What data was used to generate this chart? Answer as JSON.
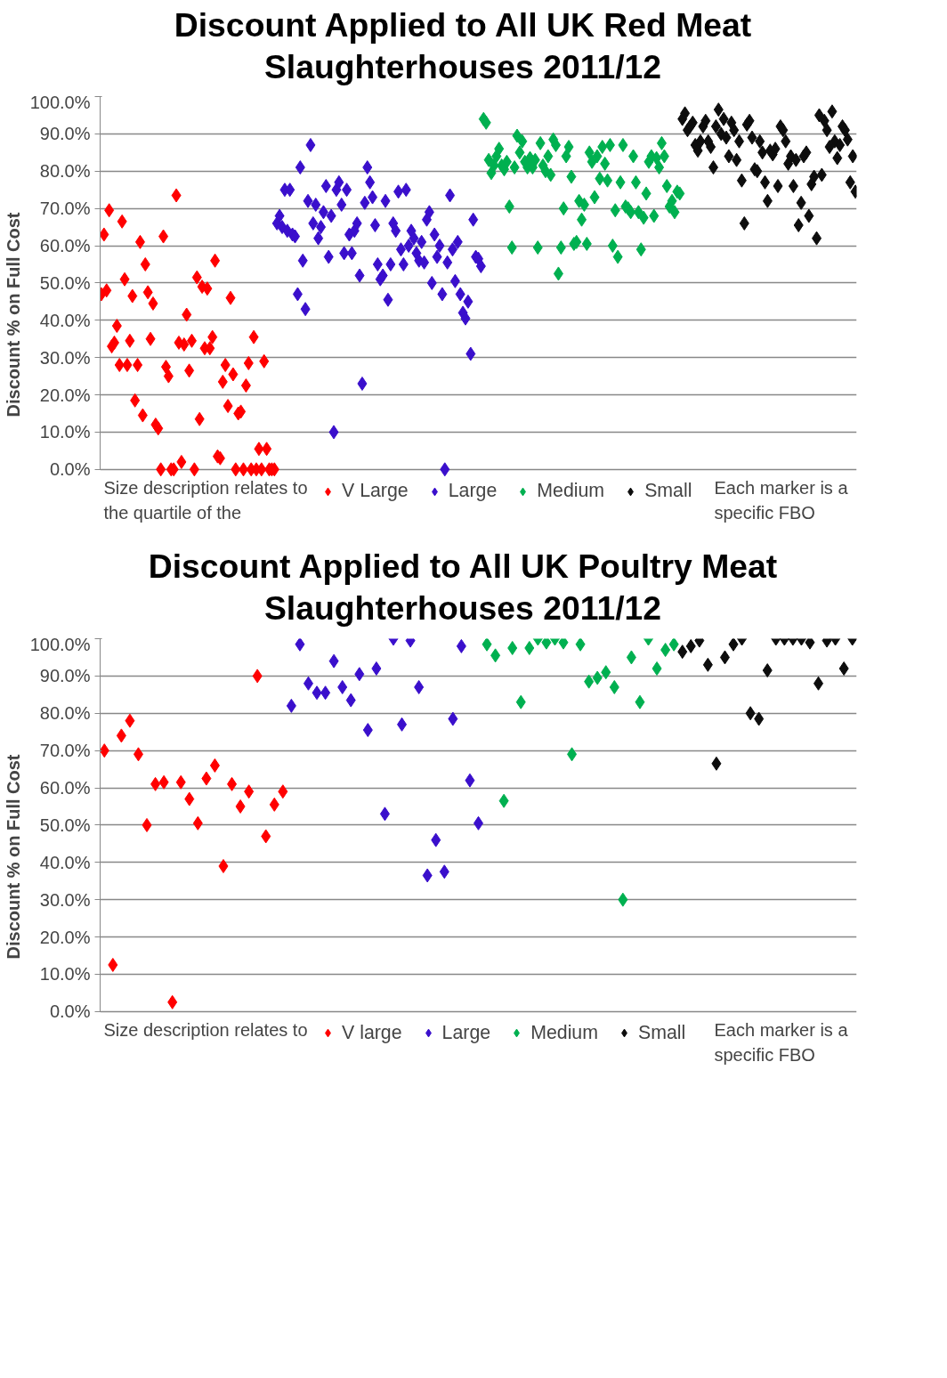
{
  "chart_data": [
    {
      "type": "scatter",
      "title": "Discount Applied to All UK Red Meat Slaughterhouses 2011/12",
      "ylabel": "Discount % on Full Cost",
      "marker": "diamond",
      "grid": "y",
      "legend": "bottom",
      "ylim": [
        0,
        100
      ],
      "categories": [
        null,
        null,
        null,
        null,
        null,
        null,
        null,
        null,
        null,
        null,
        null,
        null,
        null,
        null,
        null,
        null,
        null,
        null,
        null,
        null,
        null,
        null,
        null,
        null,
        null,
        null,
        null,
        null,
        null,
        null,
        null,
        null,
        null,
        null,
        null,
        null,
        null,
        null,
        null,
        null,
        null,
        null,
        null,
        null,
        null,
        null,
        null,
        null,
        null,
        null,
        null,
        null,
        null,
        null,
        null,
        null,
        null,
        null,
        null,
        null,
        null,
        null,
        null,
        null,
        null,
        null,
        null,
        null,
        null,
        null,
        null,
        null,
        null,
        null,
        null,
        null,
        null,
        null,
        null,
        null,
        null,
        null,
        null,
        null,
        null,
        null,
        null,
        null,
        null,
        null,
        null,
        null,
        null,
        null,
        null,
        null,
        null,
        null,
        null,
        null,
        null,
        null,
        null,
        null,
        null,
        null,
        null,
        null,
        null,
        null,
        null,
        null,
        null,
        null,
        null,
        null,
        null,
        null,
        null,
        null,
        null,
        null,
        null,
        null,
        null,
        null,
        null,
        null,
        null,
        null,
        null,
        null,
        null,
        null,
        null,
        null,
        null,
        null,
        null,
        null,
        null,
        null,
        null,
        null,
        null,
        null,
        null,
        null,
        null,
        null,
        null,
        null,
        null,
        null,
        null,
        null,
        null,
        null,
        null,
        null,
        null,
        null,
        null,
        null,
        null,
        null,
        null,
        null,
        null,
        null,
        null,
        null,
        null,
        null,
        null,
        null,
        null,
        null,
        null,
        null,
        null,
        null,
        null,
        null,
        null,
        null,
        null,
        null,
        null,
        null,
        null,
        null,
        null,
        null,
        null,
        null,
        null,
        null,
        null,
        null,
        null,
        null,
        null,
        null,
        null,
        null,
        null,
        null,
        null,
        null,
        null,
        null,
        null,
        null,
        null,
        null,
        null,
        null,
        null,
        null,
        null,
        null,
        null,
        null,
        null,
        null,
        null,
        null,
        null,
        null,
        null,
        null,
        null,
        null,
        null,
        null,
        null,
        null,
        null,
        null,
        null,
        null,
        null,
        null,
        null,
        null,
        null,
        null,
        null,
        null,
        null,
        null,
        null,
        null,
        null,
        null,
        null,
        null,
        null,
        null,
        null,
        null,
        null,
        null,
        null,
        null,
        null,
        null,
        null,
        null,
        null,
        null,
        null,
        null,
        null,
        null,
        null,
        null,
        null,
        null,
        null,
        null,
        null,
        null,
        null,
        null,
        null,
        null,
        null,
        null,
        null,
        null,
        null
      ],
      "yticks": [
        {
          "value": 0,
          "label": "0.0%"
        },
        {
          "value": 10,
          "label": "10.0%"
        },
        {
          "value": 20,
          "label": "20.0%"
        },
        {
          "value": 30,
          "label": "30.0%"
        },
        {
          "value": 40,
          "label": "40.0%"
        },
        {
          "value": 50,
          "label": "50.0%"
        },
        {
          "value": 60,
          "label": "60.0%"
        },
        {
          "value": 70,
          "label": "70.0%"
        },
        {
          "value": 80,
          "label": "80.0%"
        },
        {
          "value": 90,
          "label": "90.0%"
        },
        {
          "value": 100,
          "label": "100.0%"
        }
      ],
      "annotations": [
        "Size description relates to the quartile of the",
        "Each marker is a specific FBO"
      ],
      "series": [
        {
          "name": "V Large",
          "color": "#ff0000",
          "values": [
            47,
            63,
            48,
            69.5,
            33,
            34,
            38.5,
            28,
            66.5,
            51,
            28,
            34.5,
            46.5,
            18.5,
            28,
            61,
            14.5,
            55,
            47.5,
            35,
            44.5,
            12,
            11,
            0,
            62.5,
            27.5,
            25,
            0,
            0,
            73.5,
            34,
            2,
            33.5,
            41.5,
            26.5,
            34.5,
            0,
            51.5,
            13.5,
            49,
            32.5,
            48.5,
            32.5,
            35.5,
            56,
            3.5,
            3,
            23.5,
            28,
            17,
            46,
            25.5,
            0,
            15,
            15.5,
            0,
            22.5,
            28.5,
            0,
            35.5,
            0,
            5.5,
            0,
            29,
            5.5,
            0,
            0,
            0,
            null,
            null,
            null,
            null,
            null,
            null,
            null,
            null,
            null,
            null,
            null,
            null,
            null,
            null,
            null,
            null,
            null,
            null,
            null,
            null,
            null,
            null,
            null,
            null,
            null,
            null,
            null,
            null,
            null,
            null,
            null,
            null,
            null,
            null,
            null,
            null,
            null,
            null,
            null,
            null,
            null,
            null,
            null,
            null,
            null,
            null,
            null,
            null,
            null,
            null,
            null,
            null,
            null,
            null,
            null,
            null,
            null,
            null,
            null,
            null,
            null,
            null,
            null,
            null,
            null,
            null,
            null,
            null,
            null,
            null,
            null,
            null,
            null,
            null,
            null,
            null,
            null,
            null,
            null,
            null,
            null,
            null,
            null,
            null,
            null,
            null,
            null,
            null,
            null,
            null,
            null,
            null,
            null,
            null,
            null,
            null,
            null,
            null,
            null,
            null,
            null,
            null,
            null,
            null,
            null,
            null,
            null,
            null,
            null,
            null,
            null,
            null,
            null,
            null,
            null,
            null,
            null,
            null,
            null,
            null,
            null,
            null,
            null,
            null,
            null,
            null,
            null,
            null,
            null,
            null,
            null,
            null,
            null,
            null,
            null,
            null,
            null,
            null,
            null,
            null,
            null,
            null,
            null,
            null,
            null,
            null,
            null,
            null,
            null,
            null,
            null,
            null,
            null,
            null,
            null,
            null,
            null,
            null,
            null,
            null,
            null,
            null,
            null,
            null,
            null,
            null,
            null,
            null,
            null,
            null,
            null,
            null,
            null,
            null,
            null,
            null,
            null,
            null,
            null,
            null,
            null,
            null,
            null,
            null,
            null,
            null,
            null,
            null,
            null,
            null,
            null,
            null,
            null,
            null,
            null,
            null,
            null,
            null,
            null,
            null,
            null,
            null,
            null,
            null,
            null,
            null,
            null,
            null,
            null,
            null,
            null,
            null,
            null,
            null,
            null,
            null,
            null,
            null,
            null,
            null,
            null,
            null,
            null,
            null,
            null
          ]
        },
        {
          "name": "Large",
          "color": "#3a0fcc",
          "values": [
            null,
            null,
            null,
            null,
            null,
            null,
            null,
            null,
            null,
            null,
            null,
            null,
            null,
            null,
            null,
            null,
            null,
            null,
            null,
            null,
            null,
            null,
            null,
            null,
            null,
            null,
            null,
            null,
            null,
            null,
            null,
            null,
            null,
            null,
            null,
            null,
            null,
            null,
            null,
            null,
            null,
            null,
            null,
            null,
            null,
            null,
            null,
            null,
            null,
            null,
            null,
            null,
            null,
            null,
            null,
            null,
            null,
            null,
            null,
            null,
            null,
            null,
            null,
            null,
            null,
            null,
            null,
            null,
            66,
            68,
            65,
            75,
            64,
            75,
            63,
            62.5,
            47,
            81,
            56,
            43,
            72,
            87,
            66,
            71,
            62,
            65,
            69,
            76,
            57,
            68,
            10,
            75,
            77,
            71,
            58,
            75,
            63,
            58,
            64,
            66,
            52,
            23,
            71.5,
            81,
            77,
            73,
            65.5,
            55,
            51,
            52,
            72,
            45.5,
            55,
            66,
            64,
            74.5,
            59,
            55,
            75,
            60,
            64,
            62,
            58,
            56,
            61,
            55.5,
            67,
            69,
            50,
            63,
            57,
            60,
            47,
            0,
            55.5,
            73.5,
            59,
            50.5,
            61,
            47,
            42,
            40.5,
            45,
            31,
            67,
            57,
            56.5,
            54.5,
            null,
            null,
            null,
            null,
            null,
            null,
            null,
            null,
            null,
            null,
            null,
            null,
            null,
            null,
            null,
            null,
            null,
            null,
            null,
            null,
            null,
            null,
            null,
            null,
            null,
            null,
            null,
            null,
            null,
            null,
            null,
            null,
            null,
            null,
            null,
            null,
            null,
            null,
            null,
            null,
            null,
            null,
            null,
            null,
            null,
            null,
            null,
            null,
            null,
            null,
            null,
            null,
            null,
            null,
            null,
            null,
            null,
            null,
            null,
            null,
            null,
            null,
            null,
            null,
            null,
            null,
            null,
            null,
            null,
            null,
            null,
            null,
            null,
            null,
            null,
            null,
            null,
            null,
            null,
            null,
            null,
            null,
            null,
            null,
            null,
            null,
            null,
            null,
            null,
            null,
            null,
            null,
            null,
            null,
            null,
            null,
            null,
            null,
            null,
            null,
            null,
            null,
            null,
            null,
            null,
            null,
            null,
            null,
            null,
            null,
            null,
            null,
            null,
            null,
            null,
            null,
            null,
            null,
            null,
            null,
            null,
            null,
            null,
            null,
            null,
            null,
            null,
            null,
            null,
            null,
            null,
            null,
            null,
            null,
            null,
            null,
            null,
            null,
            null,
            null,
            null,
            null,
            null,
            null,
            null
          ]
        },
        {
          "name": "Medium",
          "color": "#00b050",
          "values": [
            null,
            null,
            null,
            null,
            null,
            null,
            null,
            null,
            null,
            null,
            null,
            null,
            null,
            null,
            null,
            null,
            null,
            null,
            null,
            null,
            null,
            null,
            null,
            null,
            null,
            null,
            null,
            null,
            null,
            null,
            null,
            null,
            null,
            null,
            null,
            null,
            null,
            null,
            null,
            null,
            null,
            null,
            null,
            null,
            null,
            null,
            null,
            null,
            null,
            null,
            null,
            null,
            null,
            null,
            null,
            null,
            null,
            null,
            null,
            null,
            null,
            null,
            null,
            null,
            null,
            null,
            null,
            null,
            null,
            null,
            null,
            null,
            null,
            null,
            null,
            null,
            null,
            null,
            null,
            null,
            null,
            null,
            null,
            null,
            null,
            null,
            null,
            null,
            null,
            null,
            null,
            null,
            null,
            null,
            null,
            null,
            null,
            null,
            null,
            null,
            null,
            null,
            null,
            null,
            null,
            null,
            null,
            null,
            null,
            null,
            null,
            null,
            null,
            null,
            null,
            null,
            null,
            null,
            null,
            null,
            null,
            null,
            null,
            null,
            null,
            null,
            null,
            null,
            null,
            null,
            null,
            null,
            null,
            null,
            null,
            null,
            null,
            null,
            null,
            null,
            null,
            null,
            null,
            null,
            null,
            null,
            null,
            null,
            94,
            93,
            83,
            79.5,
            81.5,
            84,
            86,
            81.5,
            80.5,
            82.5,
            70.5,
            59.5,
            81,
            89.5,
            85,
            88,
            82.5,
            81,
            83.5,
            81,
            83,
            59.5,
            87.5,
            81.5,
            80,
            84,
            79,
            88.5,
            87,
            52.5,
            59.5,
            70,
            84,
            86.5,
            78.5,
            60.5,
            61,
            72,
            67,
            71,
            60.5,
            85,
            82.5,
            73,
            84,
            78,
            86.5,
            82,
            77.5,
            87,
            60,
            69.5,
            57,
            77,
            87,
            70.5,
            70,
            69,
            84,
            77,
            69,
            59,
            67.5,
            74,
            82.5,
            84,
            68,
            83.5,
            81,
            87.5,
            84,
            76,
            70.5,
            72,
            69,
            74.5,
            74,
            null,
            null,
            null,
            null,
            null,
            null,
            null,
            null,
            null,
            null,
            null,
            null,
            null,
            null,
            null,
            null,
            null,
            null,
            null,
            null,
            null,
            null,
            null,
            null,
            null,
            null,
            null,
            null,
            null,
            null,
            null,
            null,
            null,
            null,
            null,
            null,
            null,
            null,
            null,
            null,
            null,
            null,
            null,
            null,
            null,
            null,
            null,
            null,
            null,
            null,
            null,
            null,
            null,
            null,
            null,
            null,
            null,
            null,
            null,
            null,
            null,
            null,
            null,
            null,
            null,
            null,
            null,
            null
          ]
        },
        {
          "name": "Small",
          "color": "#0d0d0d",
          "values": [
            null,
            null,
            null,
            null,
            null,
            null,
            null,
            null,
            null,
            null,
            null,
            null,
            null,
            null,
            null,
            null,
            null,
            null,
            null,
            null,
            null,
            null,
            null,
            null,
            null,
            null,
            null,
            null,
            null,
            null,
            null,
            null,
            null,
            null,
            null,
            null,
            null,
            null,
            null,
            null,
            null,
            null,
            null,
            null,
            null,
            null,
            null,
            null,
            null,
            null,
            null,
            null,
            null,
            null,
            null,
            null,
            null,
            null,
            null,
            null,
            null,
            null,
            null,
            null,
            null,
            null,
            null,
            null,
            null,
            null,
            null,
            null,
            null,
            null,
            null,
            null,
            null,
            null,
            null,
            null,
            null,
            null,
            null,
            null,
            null,
            null,
            null,
            null,
            null,
            null,
            null,
            null,
            null,
            null,
            null,
            null,
            null,
            null,
            null,
            null,
            null,
            null,
            null,
            null,
            null,
            null,
            null,
            null,
            null,
            null,
            null,
            null,
            null,
            null,
            null,
            null,
            null,
            null,
            null,
            null,
            null,
            null,
            null,
            null,
            null,
            null,
            null,
            null,
            null,
            null,
            null,
            null,
            null,
            null,
            null,
            null,
            null,
            null,
            null,
            null,
            null,
            null,
            null,
            null,
            null,
            null,
            null,
            null,
            null,
            null,
            null,
            null,
            null,
            null,
            null,
            null,
            null,
            null,
            null,
            null,
            null,
            null,
            null,
            null,
            null,
            null,
            null,
            null,
            null,
            null,
            null,
            null,
            null,
            null,
            null,
            null,
            null,
            null,
            null,
            null,
            null,
            null,
            null,
            null,
            null,
            null,
            null,
            null,
            null,
            null,
            null,
            null,
            null,
            null,
            null,
            null,
            null,
            null,
            null,
            null,
            null,
            null,
            null,
            null,
            null,
            null,
            null,
            null,
            null,
            null,
            null,
            null,
            null,
            null,
            null,
            null,
            null,
            null,
            null,
            null,
            null,
            null,
            null,
            null,
            null,
            94,
            95.5,
            91,
            92,
            93,
            87,
            85.5,
            88,
            92,
            93.5,
            88,
            86.5,
            81,
            92,
            96.5,
            90,
            94,
            89,
            84,
            93,
            91,
            83,
            88,
            77.5,
            66,
            92.5,
            93.5,
            89,
            80.5,
            80,
            88,
            85,
            77,
            72,
            85.5,
            84.5,
            86,
            76,
            92,
            91,
            88,
            82,
            84,
            76,
            83,
            65.5,
            71.5,
            84,
            85,
            68,
            76.5,
            78.5,
            62,
            95,
            79,
            93.5,
            91,
            86.5,
            96,
            88,
            83.5,
            87,
            92,
            91,
            88.5,
            77,
            84,
            74.5
          ]
        }
      ]
    },
    {
      "type": "scatter",
      "title": "Discount Applied to All UK Poultry Meat Slaughterhouses 2011/12",
      "ylabel": "Discount % on Full Cost",
      "marker": "diamond",
      "grid": "y",
      "legend": "bottom",
      "ylim": [
        0,
        100
      ],
      "categories": [
        null,
        null,
        null,
        null,
        null,
        null,
        null,
        null,
        null,
        null,
        null,
        null,
        null,
        null,
        null,
        null,
        null,
        null,
        null,
        null,
        null,
        null,
        null,
        null,
        null,
        null,
        null,
        null,
        null,
        null,
        null,
        null,
        null,
        null,
        null,
        null,
        null,
        null,
        null,
        null,
        null,
        null,
        null,
        null,
        null,
        null,
        null,
        null,
        null,
        null,
        null,
        null,
        null,
        null,
        null,
        null,
        null,
        null,
        null,
        null,
        null,
        null,
        null,
        null,
        null,
        null,
        null,
        null,
        null,
        null,
        null,
        null,
        null,
        null,
        null,
        null,
        null,
        null,
        null,
        null,
        null,
        null,
        null,
        null,
        null,
        null,
        null,
        null,
        null
      ],
      "yticks": [
        {
          "value": 0,
          "label": "0.0%"
        },
        {
          "value": 10,
          "label": "10.0%"
        },
        {
          "value": 20,
          "label": "20.0%"
        },
        {
          "value": 30,
          "label": "30.0%"
        },
        {
          "value": 40,
          "label": "40.0%"
        },
        {
          "value": 50,
          "label": "50.0%"
        },
        {
          "value": 60,
          "label": "60.0%"
        },
        {
          "value": 70,
          "label": "70.0%"
        },
        {
          "value": 80,
          "label": "80.0%"
        },
        {
          "value": 90,
          "label": "90.0%"
        },
        {
          "value": 100,
          "label": "100.0%"
        }
      ],
      "annotations": [
        "Size description relates to",
        "Each marker is a specific FBO"
      ],
      "series": [
        {
          "name": "V large",
          "color": "#ff0000",
          "values": [
            70,
            12.5,
            74,
            78,
            69,
            50,
            61,
            61.5,
            2.5,
            61.5,
            57,
            50.5,
            62.5,
            66,
            39,
            61,
            55,
            59,
            90,
            47,
            55.5,
            59,
            null,
            null,
            null,
            null,
            null,
            null,
            null,
            null,
            null,
            null,
            null,
            null,
            null,
            null,
            null,
            null,
            null,
            null,
            null,
            null,
            null,
            null,
            null,
            null,
            null,
            null,
            null,
            null,
            null,
            null,
            null,
            null,
            null,
            null,
            null,
            null,
            null,
            null,
            null,
            null,
            null,
            null,
            null,
            null,
            null,
            null,
            null,
            null,
            null,
            null,
            null,
            null,
            null,
            null,
            null,
            null,
            null,
            null,
            null,
            null,
            null,
            null,
            null,
            null,
            null,
            null,
            null
          ]
        },
        {
          "name": "Large",
          "color": "#3a0fcc",
          "values": [
            null,
            null,
            null,
            null,
            null,
            null,
            null,
            null,
            null,
            null,
            null,
            null,
            null,
            null,
            null,
            null,
            null,
            null,
            null,
            null,
            null,
            null,
            82,
            98.5,
            88,
            85.5,
            85.5,
            94,
            87,
            83.5,
            90.5,
            75.5,
            92,
            53,
            100,
            77,
            99.5,
            87,
            36.5,
            46,
            37.5,
            78.5,
            98,
            62,
            50.5,
            null,
            null,
            null,
            null,
            null,
            null,
            null,
            null,
            null,
            null,
            null,
            null,
            null,
            null,
            null,
            null,
            null,
            null,
            null,
            null,
            null,
            null,
            null,
            null,
            null,
            null,
            null,
            null,
            null,
            null,
            null,
            null,
            null,
            null,
            null,
            null,
            null,
            null,
            null,
            null,
            null,
            null,
            null,
            null
          ]
        },
        {
          "name": "Medium",
          "color": "#00b050",
          "values": [
            null,
            null,
            null,
            null,
            null,
            null,
            null,
            null,
            null,
            null,
            null,
            null,
            null,
            null,
            null,
            null,
            null,
            null,
            null,
            null,
            null,
            null,
            null,
            null,
            null,
            null,
            null,
            null,
            null,
            null,
            null,
            null,
            null,
            null,
            null,
            null,
            null,
            null,
            null,
            null,
            null,
            null,
            null,
            null,
            null,
            98.5,
            95.5,
            56.5,
            97.5,
            83,
            97.5,
            100,
            99,
            100,
            99,
            69,
            98.5,
            88.5,
            89.5,
            91,
            87,
            30,
            95,
            83,
            100,
            92,
            97,
            98.5,
            null,
            null,
            null,
            null,
            null,
            null,
            null,
            null,
            null,
            null,
            null,
            null,
            null,
            null,
            null,
            null,
            null,
            null,
            null,
            null,
            null
          ]
        },
        {
          "name": "Small",
          "color": "#0d0d0d",
          "values": [
            null,
            null,
            null,
            null,
            null,
            null,
            null,
            null,
            null,
            null,
            null,
            null,
            null,
            null,
            null,
            null,
            null,
            null,
            null,
            null,
            null,
            null,
            null,
            null,
            null,
            null,
            null,
            null,
            null,
            null,
            null,
            null,
            null,
            null,
            null,
            null,
            null,
            null,
            null,
            null,
            null,
            null,
            null,
            null,
            null,
            null,
            null,
            null,
            null,
            null,
            null,
            null,
            null,
            null,
            null,
            null,
            null,
            null,
            null,
            null,
            null,
            null,
            null,
            null,
            null,
            null,
            null,
            null,
            96.5,
            98,
            99.5,
            93,
            66.5,
            95,
            98.5,
            100,
            80,
            78.5,
            91.5,
            100,
            100,
            100,
            100,
            99,
            88,
            99.5,
            100,
            92,
            100
          ]
        }
      ]
    }
  ]
}
